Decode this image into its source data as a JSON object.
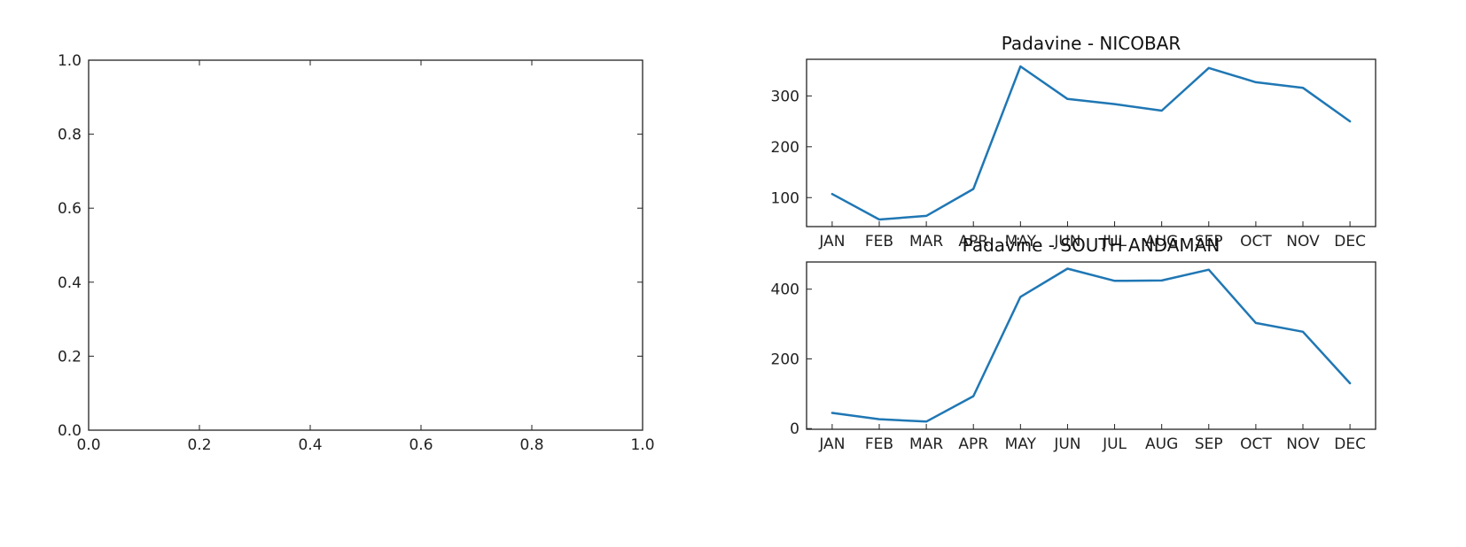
{
  "chart_data": [
    {
      "type": "line",
      "title": "",
      "xlabel": "",
      "ylabel": "",
      "xlim": [
        0,
        1
      ],
      "ylim": [
        0,
        1
      ],
      "xticks": [
        "0.0",
        "0.2",
        "0.4",
        "0.6",
        "0.8",
        "1.0"
      ],
      "yticks": [
        "0.0",
        "0.2",
        "0.4",
        "0.6",
        "0.8",
        "1.0"
      ],
      "series": []
    },
    {
      "type": "line",
      "title": "Padavine - NICOBAR",
      "xlabel": "",
      "ylabel": "",
      "categories": [
        "JAN",
        "FEB",
        "MAR",
        "APR",
        "MAY",
        "JUN",
        "JUL",
        "AUG",
        "SEP",
        "OCT",
        "NOV",
        "DEC"
      ],
      "ylim": [
        43,
        372
      ],
      "yticks": [
        100,
        200,
        300
      ],
      "series": [
        {
          "values": [
            107,
            57,
            64,
            117,
            358,
            294,
            284,
            271,
            355,
            327,
            316,
            250
          ]
        }
      ]
    },
    {
      "type": "line",
      "title": "Padavine - SOUTH ANDAMAN",
      "xlabel": "",
      "ylabel": "",
      "categories": [
        "JAN",
        "FEB",
        "MAR",
        "APR",
        "MAY",
        "JUN",
        "JUL",
        "AUG",
        "SEP",
        "OCT",
        "NOV",
        "DEC"
      ],
      "ylim": [
        -2,
        478
      ],
      "yticks": [
        0,
        200,
        400
      ],
      "series": [
        {
          "values": [
            45,
            27,
            20,
            93,
            378,
            459,
            424,
            425,
            456,
            303,
            278,
            130
          ]
        }
      ]
    }
  ],
  "colors": {
    "series": "#1f77b4"
  }
}
